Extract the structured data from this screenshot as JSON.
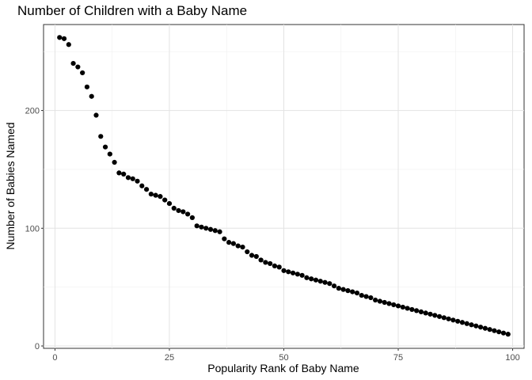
{
  "chart_data": {
    "type": "scatter",
    "title": "Number of Children with a Baby Name",
    "xlabel": "Popularity Rank of Baby Name",
    "ylabel": "Number of Babies Named",
    "xlim": [
      -2.5,
      102.5
    ],
    "ylim": [
      -2,
      273
    ],
    "x_ticks": [
      0,
      25,
      50,
      75,
      100
    ],
    "y_ticks": [
      0,
      100,
      200
    ],
    "grid": true,
    "legend": "none",
    "point_color": "#000000",
    "x": [
      1,
      2,
      3,
      4,
      5,
      6,
      7,
      8,
      9,
      10,
      11,
      12,
      13,
      14,
      15,
      16,
      17,
      18,
      19,
      20,
      21,
      22,
      23,
      24,
      25,
      26,
      27,
      28,
      29,
      30,
      31,
      32,
      33,
      34,
      35,
      36,
      37,
      38,
      39,
      40,
      41,
      42,
      43,
      44,
      45,
      46,
      47,
      48,
      49,
      50,
      51,
      52,
      53,
      54,
      55,
      56,
      57,
      58,
      59,
      60,
      61,
      62,
      63,
      64,
      65,
      66,
      67,
      68,
      69,
      70,
      71,
      72,
      73,
      74,
      75,
      76,
      77,
      78,
      79,
      80,
      81,
      82,
      83,
      84,
      85,
      86,
      87,
      88,
      89,
      90,
      91,
      92,
      93,
      94,
      95,
      96,
      97,
      98,
      99
    ],
    "y": [
      262,
      261,
      256,
      240,
      237,
      232,
      220,
      212,
      196,
      178,
      169,
      163,
      156,
      147,
      146,
      143,
      142,
      140,
      136,
      133,
      129,
      128,
      127,
      124,
      121,
      117,
      115,
      114,
      112,
      109,
      102,
      101,
      100,
      99,
      98,
      97,
      91,
      88,
      87,
      85,
      84,
      80,
      77,
      76,
      73,
      71,
      70,
      68,
      67,
      64,
      63,
      62,
      61,
      60,
      58,
      57,
      56,
      55,
      54,
      53,
      51,
      49,
      48,
      47,
      46,
      45,
      43,
      42,
      41,
      39,
      38,
      37,
      36,
      35,
      34,
      33,
      32,
      31,
      30,
      29,
      28,
      27,
      26,
      25,
      24,
      23,
      22,
      21,
      20,
      19,
      18,
      17,
      16,
      15,
      14,
      13,
      12,
      11,
      10
    ]
  }
}
